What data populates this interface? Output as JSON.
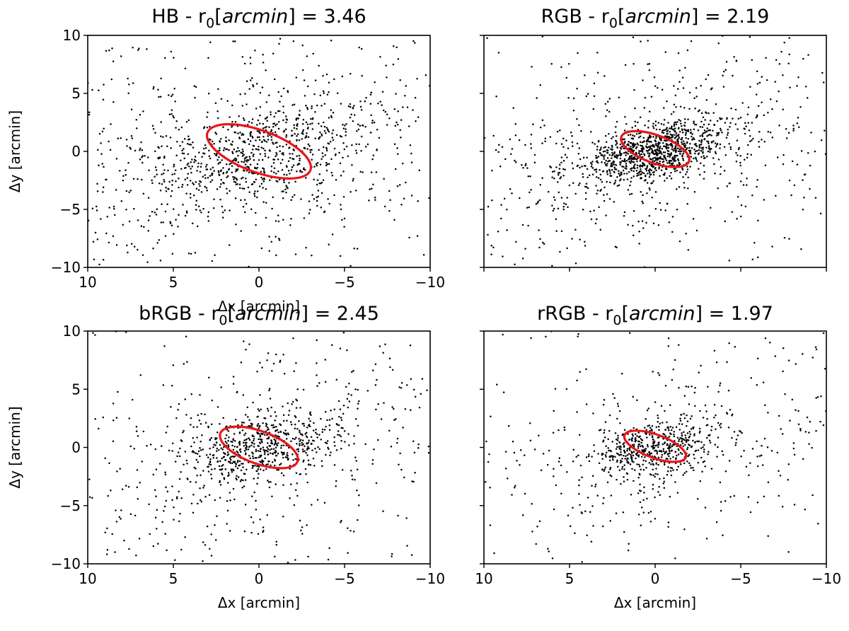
{
  "chart_data": [
    {
      "type": "scatter",
      "panel": "HB",
      "title_prefix": "HB - r",
      "title_sub": "0",
      "title_unit": "arcmin",
      "title_value": "3.46",
      "r0_arcmin": 3.46,
      "xlabel": "Δx [arcmin]",
      "ylabel": "Δy [arcmin]",
      "xlim": [
        10,
        -10
      ],
      "ylim": [
        -10,
        10
      ],
      "xticks": [
        10,
        5,
        0,
        -5,
        -10
      ],
      "yticks": [
        10,
        5,
        0,
        -5,
        -10
      ],
      "xtick_labels": [
        "10",
        "5",
        "0",
        "−5",
        "−10"
      ],
      "ytick_labels": [
        "10",
        "5",
        "0",
        "−5",
        "−10"
      ],
      "ellipse": {
        "cx": 0.0,
        "cy": 0.0,
        "semi_major": 3.2,
        "semi_minor": 1.8,
        "angle_deg": -20
      },
      "point_distribution": {
        "n_core": 650,
        "core_sigma": 2.8,
        "n_halo": 500,
        "halo_sigma": 6.5,
        "n_uniform": 160,
        "elongation_deg": -25
      },
      "series_color": "#000000",
      "ellipse_color": "#e8161b"
    },
    {
      "type": "scatter",
      "panel": "RGB",
      "title_prefix": "RGB - r",
      "title_sub": "0",
      "title_unit": "arcmin",
      "title_value": "2.19",
      "r0_arcmin": 2.19,
      "xlabel": "",
      "ylabel": "",
      "xlim": [
        10,
        -10
      ],
      "ylim": [
        -10,
        10
      ],
      "xticks": [
        10,
        5,
        0,
        -5,
        -10
      ],
      "yticks": [
        10,
        5,
        0,
        -5,
        -10
      ],
      "xtick_labels": [],
      "ytick_labels": [],
      "ellipse": {
        "cx": 0.0,
        "cy": 0.2,
        "semi_major": 2.1,
        "semi_minor": 1.2,
        "angle_deg": -20
      },
      "point_distribution": {
        "n_core": 900,
        "core_sigma": 1.6,
        "n_halo": 550,
        "halo_sigma": 5.5,
        "n_uniform": 130,
        "elongation_deg": -25
      },
      "series_color": "#000000",
      "ellipse_color": "#e8161b"
    },
    {
      "type": "scatter",
      "panel": "bRGB",
      "title_prefix": "bRGB - r",
      "title_sub": "0",
      "title_unit": "arcmin",
      "title_value": "2.45",
      "r0_arcmin": 2.45,
      "xlabel": "Δx [arcmin]",
      "ylabel": "Δy [arcmin]",
      "xlim": [
        10,
        -10
      ],
      "ylim": [
        -10,
        10
      ],
      "xticks": [
        10,
        5,
        0,
        -5,
        -10
      ],
      "yticks": [
        10,
        5,
        0,
        -5,
        -10
      ],
      "xtick_labels": [
        "10",
        "5",
        "0",
        "−5",
        "−10"
      ],
      "ytick_labels": [
        "10",
        "5",
        "0",
        "−5",
        "−10"
      ],
      "ellipse": {
        "cx": 0.0,
        "cy": 0.0,
        "semi_major": 2.4,
        "semi_minor": 1.4,
        "angle_deg": -20
      },
      "point_distribution": {
        "n_core": 550,
        "core_sigma": 1.9,
        "n_halo": 400,
        "halo_sigma": 5.8,
        "n_uniform": 110,
        "elongation_deg": -25
      },
      "series_color": "#000000",
      "ellipse_color": "#e8161b"
    },
    {
      "type": "scatter",
      "panel": "rRGB",
      "title_prefix": "rRGB - r",
      "title_sub": "0",
      "title_unit": "arcmin",
      "title_value": "1.97",
      "r0_arcmin": 1.97,
      "xlabel": "Δx [arcmin]",
      "ylabel": "",
      "xlim": [
        10,
        -10
      ],
      "ylim": [
        -10,
        10
      ],
      "xticks": [
        10,
        5,
        0,
        -5,
        -10
      ],
      "yticks": [
        10,
        5,
        0,
        -5,
        -10
      ],
      "xtick_labels": [
        "10",
        "5",
        "0",
        "−5",
        "−10"
      ],
      "ytick_labels": [],
      "ellipse": {
        "cx": 0.0,
        "cy": 0.1,
        "semi_major": 1.9,
        "semi_minor": 1.0,
        "angle_deg": -20
      },
      "point_distribution": {
        "n_core": 480,
        "core_sigma": 1.5,
        "n_halo": 330,
        "halo_sigma": 5.2,
        "n_uniform": 90,
        "elongation_deg": -25
      },
      "series_color": "#000000",
      "ellipse_color": "#e8161b"
    }
  ]
}
